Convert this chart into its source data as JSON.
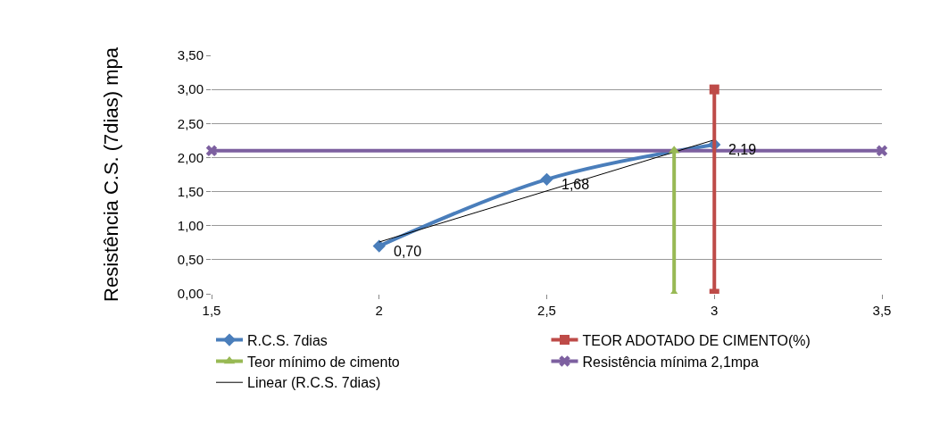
{
  "chart_data": {
    "type": "line",
    "ylabel": "Resistência C.S. (7dias) mpa",
    "xlim": [
      1.5,
      3.5
    ],
    "xticks": [
      {
        "value": 1.5,
        "label": "1,5"
      },
      2,
      {
        "value": 2.5,
        "label": "2,5"
      },
      3,
      {
        "value": 3.5,
        "label": "3,5"
      }
    ],
    "ylim": [
      0,
      3.5
    ],
    "yticks": [
      {
        "value": 0,
        "label": "0,00"
      },
      {
        "value": 0.5,
        "label": "0,50"
      },
      {
        "value": 1,
        "label": "1,00"
      },
      {
        "value": 1.5,
        "label": "1,50"
      },
      {
        "value": 2,
        "label": "2,00"
      },
      {
        "value": 2.5,
        "label": "2,50"
      },
      {
        "value": 3,
        "label": "3,00"
      },
      {
        "value": 3.5,
        "label": "3,50"
      }
    ],
    "grid": "y",
    "legend": "bottom",
    "series": [
      {
        "name": "R.C.S. 7dias",
        "color": "#4a7ebb",
        "x": [
          2,
          2.5,
          3
        ],
        "values": [
          0.7,
          1.68,
          2.19
        ],
        "value_labels": [
          "0,70",
          "1,68",
          "2,19"
        ],
        "marker": "diamond"
      },
      {
        "name": "TEOR ADOTADO DE CIMENTO(%)",
        "color": "#be4b48",
        "x": [
          3,
          3
        ],
        "values": [
          0,
          3
        ],
        "marker": "square"
      },
      {
        "name": "Teor mínimo de cimento",
        "color": "#98b954",
        "x": [
          2.88,
          2.88
        ],
        "values": [
          0,
          2.1
        ],
        "marker": "triangle"
      },
      {
        "name": "Resistência mínima 2,1mpa",
        "color": "#7d60a0",
        "x": [
          1.5,
          3.5
        ],
        "values": [
          2.1,
          2.1
        ],
        "marker": "cross"
      },
      {
        "name": "Linear (R.C.S. 7dias)",
        "color": "#000000",
        "x": [
          2,
          3
        ],
        "values": [
          0.76,
          2.26
        ],
        "marker": "none"
      }
    ]
  }
}
